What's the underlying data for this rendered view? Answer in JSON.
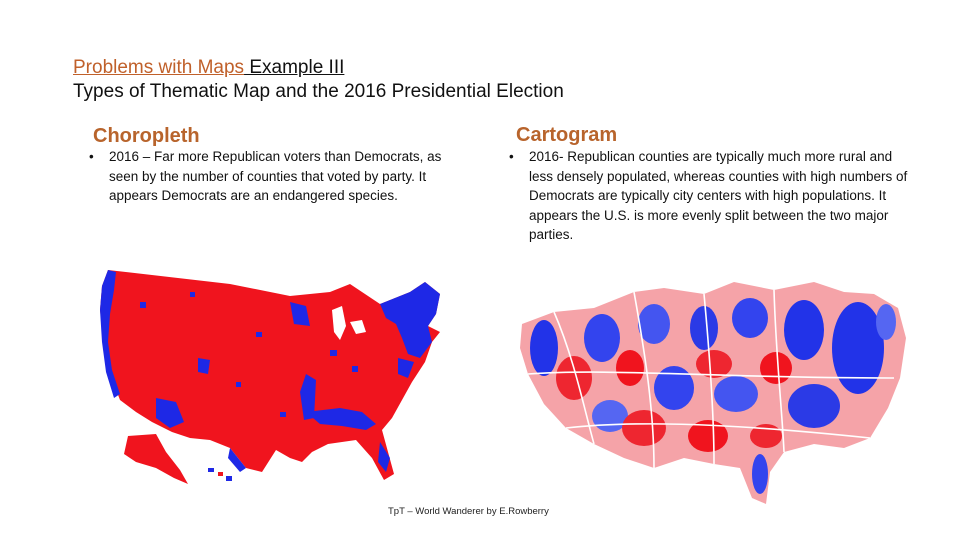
{
  "title": {
    "link_text": "Problems with Maps",
    "rest_text": " Example III",
    "subtitle": "Types of Thematic Map and the 2016 Presidential Election"
  },
  "left": {
    "heading": "Choropleth",
    "bullet": "2016 – Far more Republican voters than Democrats, as seen by the number of counties that voted by party. It appears Democrats are an endangered species."
  },
  "right": {
    "heading": "Cartogram",
    "bullet": "2016- Republican counties are typically much more rural and less densely populated, whereas counties with high numbers of Democrats are typically city centers with high populations. It appears the U.S. is more evenly split between the two major parties."
  },
  "footer": "TpT – World Wanderer by E.Rowberry",
  "colors": {
    "republican": "#f0141e",
    "democrat": "#1e28e6",
    "accent": "#c0602a"
  }
}
